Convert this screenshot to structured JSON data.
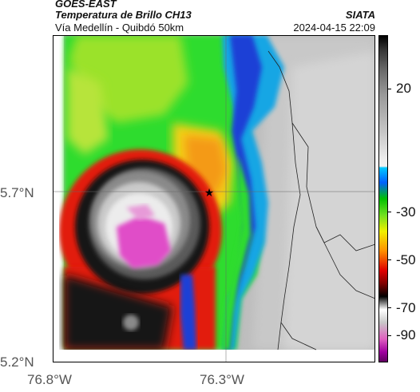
{
  "header": {
    "satellite": "GOES-EAST",
    "product": "Temperatura de Brillo CH13",
    "subtitle": "Vía Medellín - Quibdó 50km",
    "org": "SIATA",
    "datetime": "2024-04-15 22:09"
  },
  "axes": {
    "y_ticks": [
      "5.7°N",
      "5.2°N"
    ],
    "x_ticks": [
      "76.8°W",
      "76.3°W"
    ]
  },
  "colorbar": {
    "ticks": [
      "20",
      "-30",
      "-50",
      "-70",
      "-90"
    ]
  },
  "colors": {
    "land_gray": "#bdbdbd",
    "warm_gray": "#d6d6d6",
    "green": "#2fdc2f",
    "yellow_green": "#9be22c",
    "orange": "#f49a12",
    "red": "#e21a10",
    "black": "#151515",
    "magenta": "#e04ec8",
    "blue": "#1b3fd6",
    "cyan": "#17a6e4"
  },
  "marker": {
    "symbol": "★",
    "name": "location-star"
  }
}
